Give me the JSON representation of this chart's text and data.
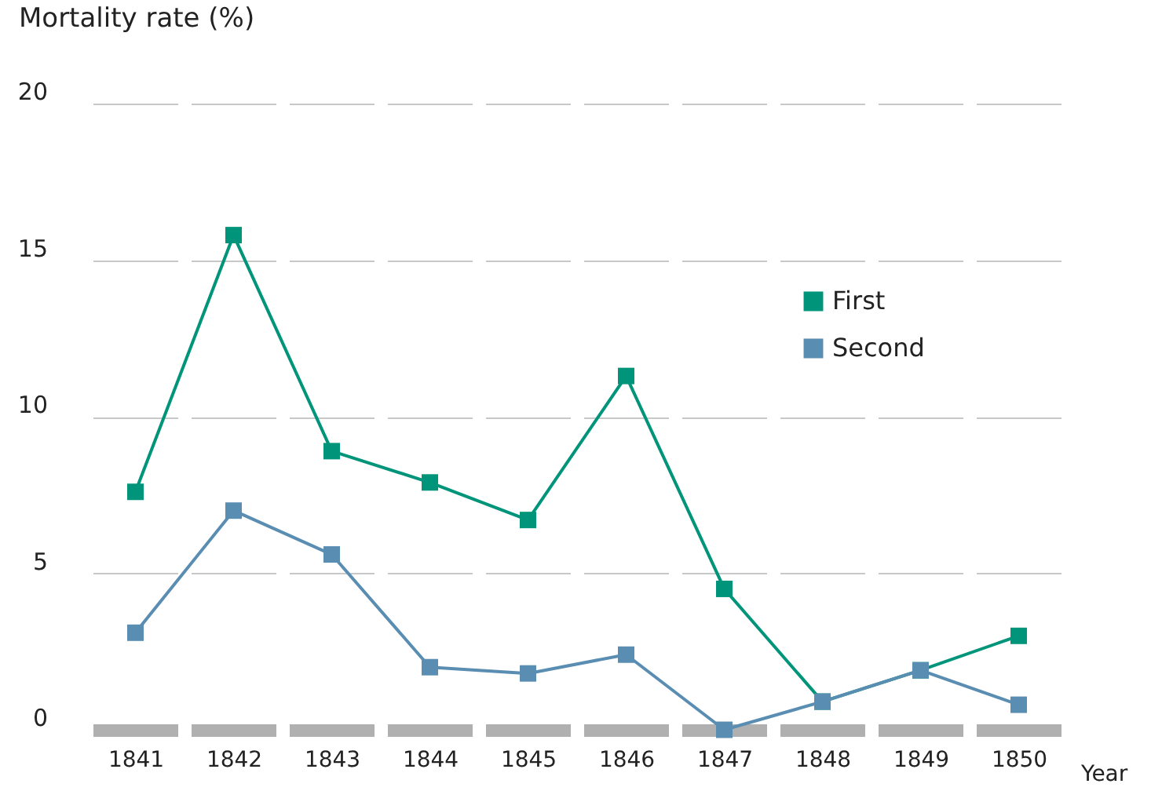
{
  "chart_data": {
    "type": "line",
    "ylabel": "Mortality rate (%)",
    "xlabel": "Year",
    "categories": [
      "1841",
      "1842",
      "1843",
      "1844",
      "1845",
      "1846",
      "1847",
      "1848",
      "1849",
      "1850"
    ],
    "series": [
      {
        "name": "First",
        "color": "#00957a",
        "values": [
          7.6,
          15.8,
          8.9,
          7.9,
          6.7,
          11.3,
          4.5,
          0.9,
          1.9,
          3.0
        ]
      },
      {
        "name": "Second",
        "color": "#5a8db2",
        "values": [
          3.1,
          7.0,
          5.6,
          2.0,
          1.8,
          2.4,
          0,
          0.9,
          1.9,
          0.8
        ]
      }
    ],
    "ylim": [
      0,
      20
    ],
    "yticks": [
      0,
      5,
      10,
      15,
      20
    ],
    "grid": "y",
    "legend": "right",
    "marker": "square",
    "line_style": "solid"
  }
}
